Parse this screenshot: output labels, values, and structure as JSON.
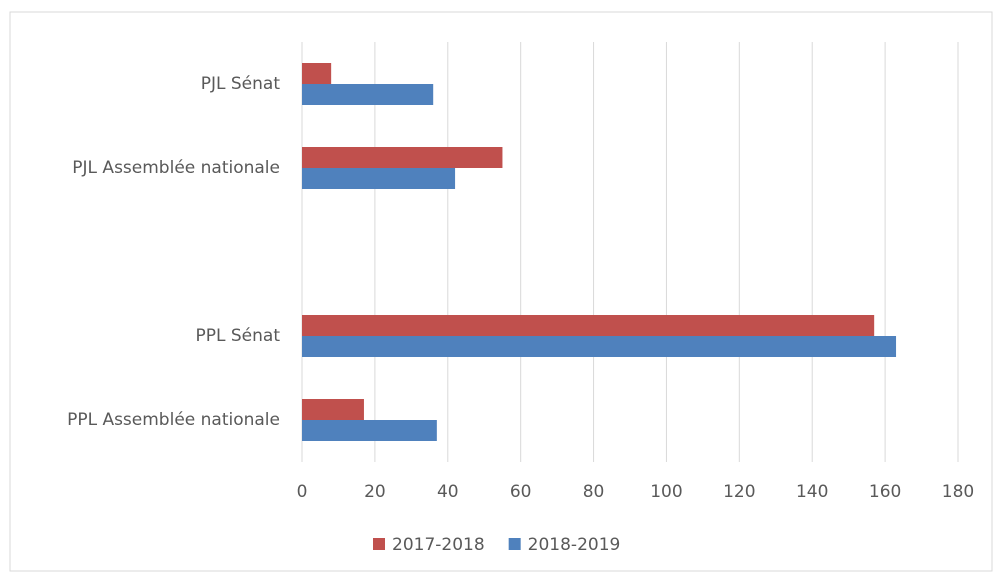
{
  "chart_data": {
    "type": "hbar",
    "categories": [
      "PJL Sénat",
      "PJL Assemblée nationale",
      null,
      "PPL Sénat",
      "PPL Assemblée nationale"
    ],
    "series": [
      {
        "name": "2017-2018",
        "color": "#c0504d",
        "values": [
          8,
          55,
          null,
          157,
          17
        ]
      },
      {
        "name": "2018-2019",
        "color": "#4f81bd",
        "values": [
          36,
          42,
          null,
          163,
          37
        ]
      }
    ],
    "xlim": [
      0,
      180
    ],
    "xticks": [
      0,
      20,
      40,
      60,
      80,
      100,
      120,
      140,
      160,
      180
    ],
    "grid": true,
    "legend": "bottom"
  }
}
